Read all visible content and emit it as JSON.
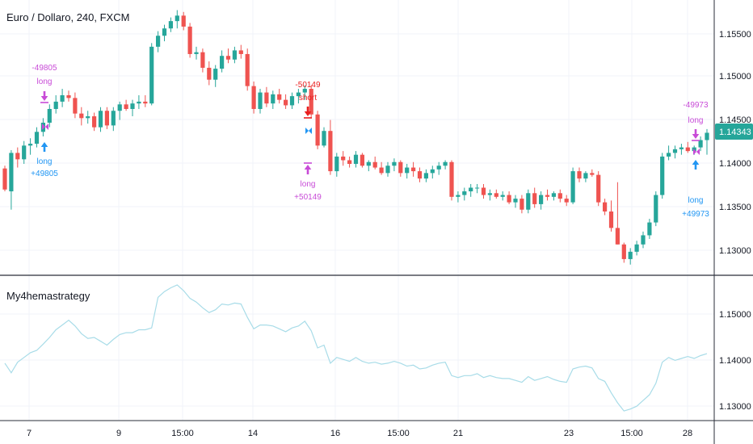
{
  "chart": {
    "symbol_title": "Euro / Dollaro, 240, FXCM",
    "indicator_title": "My4hemastrategy",
    "current_price": "1.14343",
    "colors": {
      "up": "#26a69a",
      "down": "#ef5350",
      "long_entry": "#2196f3",
      "long_exit": "#c84bd7",
      "short": "#e91e1e",
      "indicator_line": "#a8dce8",
      "price_badge": "#26a69a",
      "grid": "#f0f3fa",
      "divider": "#2a2e39"
    }
  },
  "price_axis": {
    "labels": [
      "1.15500",
      "1.15000",
      "1.14500",
      "1.14000",
      "1.13500",
      "1.13000"
    ]
  },
  "indicator_axis": {
    "labels": [
      "1.15000",
      "1.14000",
      "1.13000"
    ]
  },
  "time_axis": {
    "labels": [
      "7",
      "9",
      "15:00",
      "14",
      "16",
      "15:00",
      "21",
      "23",
      "15:00",
      "28"
    ]
  },
  "signals": [
    {
      "kind": "long_exit",
      "value": "-49805",
      "label": "long"
    },
    {
      "kind": "long_entry",
      "value": "+49805",
      "label": "long"
    },
    {
      "kind": "short",
      "value": "-50149",
      "label": "short"
    },
    {
      "kind": "long_exit",
      "value": "+50149",
      "label": "long"
    },
    {
      "kind": "long_exit",
      "value": "-49973",
      "label": "long"
    },
    {
      "kind": "long_entry",
      "value": "+49973",
      "label": "long"
    }
  ],
  "chart_data": {
    "type": "candlestick",
    "title": "Euro / Dollaro, 240, FXCM",
    "ylim": [
      1.1288,
      1.1572
    ],
    "candles": [
      [
        1.1395,
        1.1398,
        1.137,
        1.1372
      ],
      [
        1.137,
        1.1415,
        1.135,
        1.1412
      ],
      [
        1.1412,
        1.1418,
        1.1396,
        1.1405
      ],
      [
        1.1405,
        1.1425,
        1.14,
        1.142
      ],
      [
        1.142,
        1.1428,
        1.141,
        1.1422
      ],
      [
        1.1422,
        1.144,
        1.1418,
        1.1435
      ],
      [
        1.1435,
        1.145,
        1.143,
        1.1445
      ],
      [
        1.1445,
        1.1465,
        1.144,
        1.146
      ],
      [
        1.146,
        1.1475,
        1.1455,
        1.1468
      ],
      [
        1.1468,
        1.1482,
        1.1462,
        1.1475
      ],
      [
        1.1475,
        1.148,
        1.1468,
        1.1472
      ],
      [
        1.1472,
        1.1478,
        1.145,
        1.1455
      ],
      [
        1.1455,
        1.1462,
        1.1442,
        1.145
      ],
      [
        1.145,
        1.1458,
        1.1444,
        1.1452
      ],
      [
        1.1452,
        1.1456,
        1.1436,
        1.144
      ],
      [
        1.144,
        1.1462,
        1.1435,
        1.1458
      ],
      [
        1.1458,
        1.1462,
        1.1438,
        1.1442
      ],
      [
        1.1442,
        1.1462,
        1.1436,
        1.1458
      ],
      [
        1.1458,
        1.1468,
        1.1448,
        1.1465
      ],
      [
        1.1465,
        1.147,
        1.1458,
        1.146
      ],
      [
        1.146,
        1.147,
        1.1452,
        1.1466
      ],
      [
        1.1466,
        1.1475,
        1.146,
        1.1468
      ],
      [
        1.1468,
        1.1475,
        1.1462,
        1.1466
      ],
      [
        1.1466,
        1.1532,
        1.1464,
        1.1528
      ],
      [
        1.1528,
        1.1545,
        1.1522,
        1.154
      ],
      [
        1.154,
        1.1552,
        1.1534,
        1.1548
      ],
      [
        1.1548,
        1.156,
        1.1544,
        1.1556
      ],
      [
        1.1556,
        1.1568,
        1.1548,
        1.1562
      ],
      [
        1.1562,
        1.1566,
        1.1546,
        1.155
      ],
      [
        1.155,
        1.1554,
        1.1516,
        1.152
      ],
      [
        1.152,
        1.1528,
        1.1514,
        1.1522
      ],
      [
        1.1522,
        1.1526,
        1.15,
        1.1505
      ],
      [
        1.1505,
        1.1512,
        1.1486,
        1.1492
      ],
      [
        1.1492,
        1.1508,
        1.1484,
        1.1504
      ],
      [
        1.1504,
        1.1524,
        1.15,
        1.1518
      ],
      [
        1.1518,
        1.1526,
        1.151,
        1.1514
      ],
      [
        1.1514,
        1.1528,
        1.151,
        1.1524
      ],
      [
        1.1524,
        1.153,
        1.1515,
        1.152
      ],
      [
        1.152,
        1.1526,
        1.148,
        1.1485
      ],
      [
        1.1485,
        1.149,
        1.1455,
        1.146
      ],
      [
        1.146,
        1.1482,
        1.1455,
        1.1478
      ],
      [
        1.1478,
        1.1484,
        1.1462,
        1.1466
      ],
      [
        1.1466,
        1.148,
        1.146,
        1.1476
      ],
      [
        1.1476,
        1.1482,
        1.1466,
        1.147
      ],
      [
        1.147,
        1.1476,
        1.146,
        1.1464
      ],
      [
        1.1464,
        1.1478,
        1.146,
        1.1474
      ],
      [
        1.1474,
        1.1482,
        1.1466,
        1.1478
      ],
      [
        1.1478,
        1.1486,
        1.147,
        1.1482
      ],
      [
        1.1482,
        1.1486,
        1.145,
        1.1454
      ],
      [
        1.1454,
        1.1458,
        1.1416,
        1.142
      ],
      [
        1.142,
        1.144,
        1.1418,
        1.1436
      ],
      [
        1.1436,
        1.1448,
        1.1388,
        1.1392
      ],
      [
        1.1392,
        1.1412,
        1.1386,
        1.1408
      ],
      [
        1.1408,
        1.1414,
        1.1398,
        1.1404
      ],
      [
        1.1404,
        1.1408,
        1.1396,
        1.14
      ],
      [
        1.14,
        1.1414,
        1.1396,
        1.141
      ],
      [
        1.141,
        1.1412,
        1.1396,
        1.1398
      ],
      [
        1.1398,
        1.1404,
        1.1392,
        1.1402
      ],
      [
        1.1402,
        1.1408,
        1.1394,
        1.1396
      ],
      [
        1.1396,
        1.1402,
        1.1388,
        1.139
      ],
      [
        1.139,
        1.1402,
        1.1386,
        1.1398
      ],
      [
        1.1398,
        1.1406,
        1.1392,
        1.1402
      ],
      [
        1.1402,
        1.1404,
        1.1386,
        1.139
      ],
      [
        1.139,
        1.14,
        1.1384,
        1.1396
      ],
      [
        1.1396,
        1.1402,
        1.1386,
        1.1392
      ],
      [
        1.1392,
        1.1396,
        1.138,
        1.1384
      ],
      [
        1.1384,
        1.1394,
        1.138,
        1.139
      ],
      [
        1.139,
        1.1398,
        1.1384,
        1.1394
      ],
      [
        1.1394,
        1.1402,
        1.1388,
        1.1398
      ],
      [
        1.1398,
        1.1404,
        1.1394,
        1.1402
      ],
      [
        1.1402,
        1.1404,
        1.136,
        1.1364
      ],
      [
        1.1364,
        1.137,
        1.1358,
        1.1366
      ],
      [
        1.1366,
        1.1374,
        1.136,
        1.137
      ],
      [
        1.137,
        1.1378,
        1.1364,
        1.1374
      ],
      [
        1.1374,
        1.1378,
        1.1368,
        1.1374
      ],
      [
        1.1374,
        1.1378,
        1.1362,
        1.1366
      ],
      [
        1.1366,
        1.1372,
        1.136,
        1.1368
      ],
      [
        1.1368,
        1.1372,
        1.1362,
        1.1364
      ],
      [
        1.1364,
        1.137,
        1.136,
        1.1366
      ],
      [
        1.1366,
        1.137,
        1.1356,
        1.1358
      ],
      [
        1.1358,
        1.1366,
        1.1352,
        1.1362
      ],
      [
        1.1362,
        1.1366,
        1.1346,
        1.135
      ],
      [
        1.135,
        1.1372,
        1.1346,
        1.1368
      ],
      [
        1.1368,
        1.1374,
        1.1352,
        1.1356
      ],
      [
        1.1356,
        1.137,
        1.135,
        1.1366
      ],
      [
        1.1366,
        1.1372,
        1.136,
        1.1364
      ],
      [
        1.1364,
        1.137,
        1.136,
        1.1368
      ],
      [
        1.1368,
        1.1372,
        1.1358,
        1.1362
      ],
      [
        1.1362,
        1.1366,
        1.1354,
        1.1358
      ],
      [
        1.1358,
        1.1396,
        1.1356,
        1.1392
      ],
      [
        1.1392,
        1.1396,
        1.138,
        1.1384
      ],
      [
        1.1384,
        1.1392,
        1.138,
        1.139
      ],
      [
        1.139,
        1.1394,
        1.1386,
        1.1388
      ],
      [
        1.1388,
        1.1392,
        1.1354,
        1.1358
      ],
      [
        1.1358,
        1.1362,
        1.1344,
        1.1348
      ],
      [
        1.1348,
        1.136,
        1.1326,
        1.133
      ],
      [
        1.133,
        1.138,
        1.1312,
        1.1312
      ],
      [
        1.1312,
        1.1314,
        1.1292,
        1.1296
      ],
      [
        1.1296,
        1.1308,
        1.129,
        1.1304
      ],
      [
        1.1304,
        1.1316,
        1.13,
        1.1312
      ],
      [
        1.1312,
        1.1326,
        1.1308,
        1.1322
      ],
      [
        1.1322,
        1.134,
        1.1318,
        1.1336
      ],
      [
        1.1336,
        1.137,
        1.1332,
        1.1366
      ],
      [
        1.1366,
        1.1412,
        1.1362,
        1.1408
      ],
      [
        1.1408,
        1.142,
        1.1404,
        1.1412
      ],
      [
        1.1412,
        1.142,
        1.1406,
        1.1416
      ],
      [
        1.1416,
        1.1422,
        1.141,
        1.1418
      ],
      [
        1.1418,
        1.1424,
        1.1412,
        1.1414
      ],
      [
        1.1414,
        1.142,
        1.141,
        1.1418
      ],
      [
        1.1418,
        1.143,
        1.1414,
        1.1426
      ],
      [
        1.1426,
        1.1438,
        1.141,
        1.1434
      ]
    ],
    "indicator_ylim": [
      1.1288,
      1.1572
    ],
    "indicator": [
      1.1398,
      1.1378,
      1.14,
      1.141,
      1.142,
      1.1425,
      1.1438,
      1.1452,
      1.1468,
      1.1478,
      1.1488,
      1.1476,
      1.146,
      1.145,
      1.1452,
      1.1444,
      1.1436,
      1.1448,
      1.1458,
      1.1462,
      1.1462,
      1.1468,
      1.1468,
      1.1472,
      1.1536,
      1.1548,
      1.1556,
      1.1562,
      1.155,
      1.1534,
      1.1526,
      1.1514,
      1.1504,
      1.151,
      1.1522,
      1.152,
      1.1524,
      1.1522,
      1.1494,
      1.147,
      1.1478,
      1.1478,
      1.1476,
      1.147,
      1.1464,
      1.1472,
      1.1476,
      1.1486,
      1.1466,
      1.143,
      1.1436,
      1.1398,
      1.141,
      1.1406,
      1.1402,
      1.141,
      1.1402,
      1.1398,
      1.14,
      1.1396,
      1.1398,
      1.1402,
      1.1398,
      1.1392,
      1.1394,
      1.1386,
      1.1388,
      1.1394,
      1.1398,
      1.14,
      1.1372,
      1.1368,
      1.1372,
      1.1372,
      1.1376,
      1.1368,
      1.1372,
      1.1368,
      1.1366,
      1.1366,
      1.1362,
      1.1358,
      1.137,
      1.1362,
      1.1366,
      1.137,
      1.1364,
      1.136,
      1.1358,
      1.1386,
      1.139,
      1.1392,
      1.1388,
      1.1366,
      1.136,
      1.1336,
      1.1315,
      1.1298,
      1.1302,
      1.1308,
      1.132,
      1.1332,
      1.1356,
      1.14,
      1.141,
      1.1404,
      1.1408,
      1.1412,
      1.1408,
      1.1414,
      1.1418
    ]
  }
}
